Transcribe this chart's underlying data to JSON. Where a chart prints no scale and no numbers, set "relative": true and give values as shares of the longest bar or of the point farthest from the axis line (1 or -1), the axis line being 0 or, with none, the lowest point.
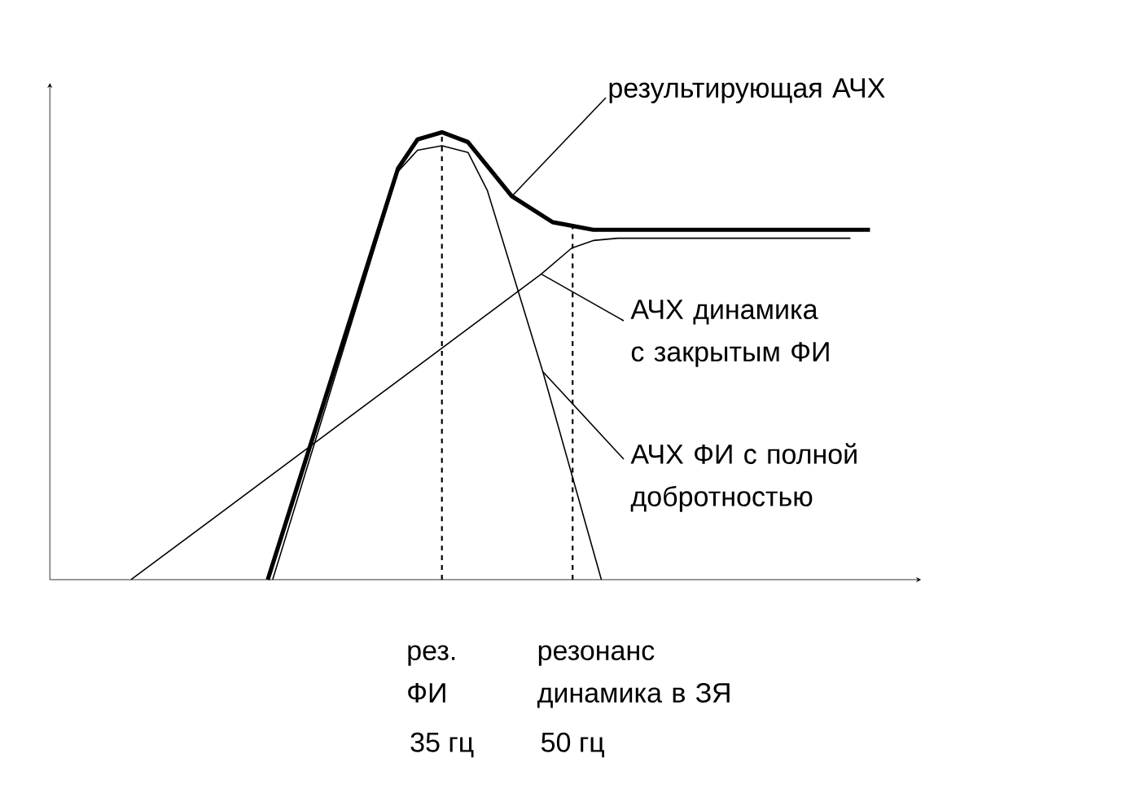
{
  "chart_data": {
    "type": "line",
    "relative": true,
    "xlim": [
      -10,
      90
    ],
    "tick_labels": "x",
    "marker": "none",
    "line_style": "solid",
    "xticks": [
      {
        "value": 35,
        "label": "35 гц"
      },
      {
        "value": 50,
        "label": "50 гц"
      }
    ],
    "series": [
      {
        "color": "#000000",
        "x": [
          15.01,
          29.96,
          32.2,
          35,
          37.99,
          40.23,
          43.03,
          47.7,
          52.37,
          84.13
        ],
        "values": [
          0,
          0.919,
          0.984,
          1,
          0.978,
          0.924,
          0.857,
          0.799,
          0.782,
          0.782
        ]
      },
      {
        "color": "#000000",
        "x": [
          -0.68,
          46.4,
          49.89,
          52.37,
          55.18,
          81.89
        ],
        "values": [
          0,
          0.683,
          0.741,
          0.758,
          0.763,
          0.763
        ]
      },
      {
        "color": "#000000",
        "x": [
          15.57,
          29.96,
          32.2,
          35,
          37.99,
          40.23,
          46.58,
          53.3
        ],
        "values": [
          0,
          0.912,
          0.96,
          0.97,
          0.955,
          0.869,
          0.465,
          0
        ]
      }
    ],
    "ref_lines": [
      {
        "axis": "x",
        "value": 35,
        "label": "рез.\nФИ",
        "line_style": "dashed"
      },
      {
        "axis": "x",
        "value": 50,
        "label": "резонанс\nдинамика в ЗЯ",
        "line_style": "dashed"
      }
    ],
    "annotations": [
      {
        "text": "результирующая АЧХ",
        "x": 43.03,
        "y": 0.857
      },
      {
        "text": "АЧХ  динамика\nс закрытым ФИ",
        "x": 46.4,
        "y": 0.683
      },
      {
        "text": "АЧХ  ФИ с полной\nдобротностью",
        "x": 46.58,
        "y": 0.465
      }
    ]
  }
}
